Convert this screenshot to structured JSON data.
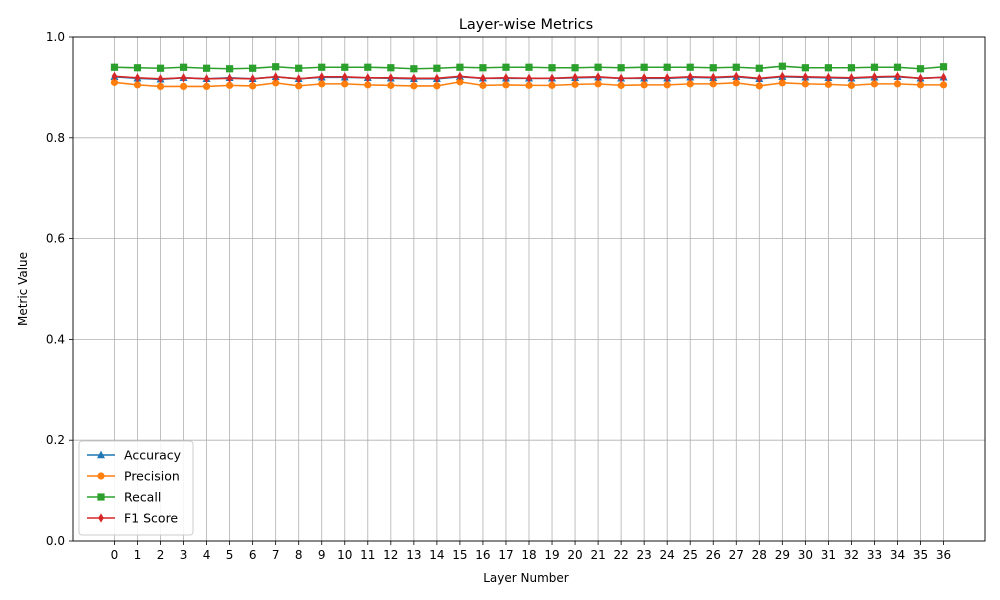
{
  "chart_data": {
    "type": "line",
    "title": "Layer-wise Metrics",
    "xlabel": "Layer Number",
    "ylabel": "Metric Value",
    "ylim": [
      0.0,
      1.0
    ],
    "yticks": [
      "0.0",
      "0.2",
      "0.4",
      "0.6",
      "0.8",
      "1.0"
    ],
    "x": [
      0,
      1,
      2,
      3,
      4,
      5,
      6,
      7,
      8,
      9,
      10,
      11,
      12,
      13,
      14,
      15,
      16,
      17,
      18,
      19,
      20,
      21,
      22,
      23,
      24,
      25,
      26,
      27,
      28,
      29,
      30,
      31,
      32,
      33,
      34,
      35,
      36
    ],
    "grid": true,
    "legend_position": "lower-left",
    "series": [
      {
        "name": "Accuracy",
        "color": "#1f77b4",
        "marker": "triangle",
        "values": [
          0.921,
          0.918,
          0.916,
          0.919,
          0.917,
          0.919,
          0.917,
          0.921,
          0.917,
          0.92,
          0.92,
          0.919,
          0.918,
          0.917,
          0.917,
          0.921,
          0.918,
          0.918,
          0.918,
          0.918,
          0.919,
          0.92,
          0.918,
          0.918,
          0.918,
          0.92,
          0.919,
          0.921,
          0.917,
          0.921,
          0.92,
          0.919,
          0.918,
          0.92,
          0.921,
          0.918,
          0.92
        ]
      },
      {
        "name": "Precision",
        "color": "#ff7f0e",
        "marker": "circle",
        "values": [
          0.91,
          0.905,
          0.902,
          0.902,
          0.902,
          0.904,
          0.903,
          0.909,
          0.903,
          0.907,
          0.907,
          0.905,
          0.904,
          0.903,
          0.903,
          0.911,
          0.904,
          0.905,
          0.904,
          0.904,
          0.906,
          0.907,
          0.904,
          0.905,
          0.905,
          0.907,
          0.907,
          0.909,
          0.903,
          0.909,
          0.907,
          0.906,
          0.904,
          0.907,
          0.907,
          0.905,
          0.905
        ]
      },
      {
        "name": "Recall",
        "color": "#2ca02c",
        "marker": "square",
        "values": [
          0.94,
          0.939,
          0.938,
          0.94,
          0.938,
          0.937,
          0.938,
          0.941,
          0.938,
          0.94,
          0.94,
          0.94,
          0.939,
          0.937,
          0.938,
          0.94,
          0.939,
          0.94,
          0.94,
          0.939,
          0.939,
          0.94,
          0.939,
          0.94,
          0.94,
          0.94,
          0.939,
          0.94,
          0.938,
          0.942,
          0.939,
          0.939,
          0.939,
          0.94,
          0.94,
          0.937,
          0.941
        ]
      },
      {
        "name": "F1 Score",
        "color": "#d62728",
        "marker": "diamond",
        "values": [
          0.922,
          0.919,
          0.917,
          0.919,
          0.917,
          0.918,
          0.917,
          0.921,
          0.917,
          0.921,
          0.921,
          0.919,
          0.919,
          0.918,
          0.918,
          0.922,
          0.918,
          0.919,
          0.918,
          0.918,
          0.92,
          0.921,
          0.918,
          0.919,
          0.919,
          0.921,
          0.92,
          0.922,
          0.918,
          0.922,
          0.921,
          0.92,
          0.919,
          0.921,
          0.922,
          0.918,
          0.92
        ]
      }
    ]
  }
}
